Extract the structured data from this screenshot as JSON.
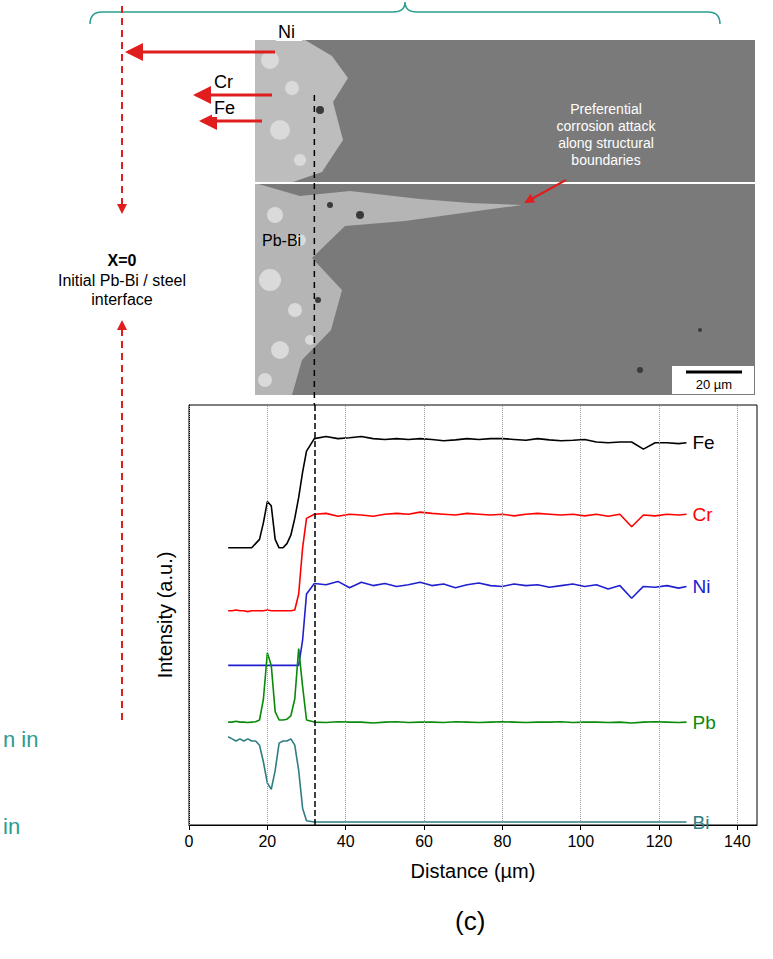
{
  "figure": {
    "image_panel": {
      "element_labels": [
        "Ni",
        "Cr",
        "Fe"
      ],
      "matrix_label": "Pb-Bi",
      "annotation": [
        "Preferential",
        "corrosion attack",
        "along structural",
        "boundaries"
      ],
      "scale_bar": "20 µm"
    },
    "interface_note": {
      "title": "X=0",
      "text": [
        "Initial Pb-Bi / steel",
        "interface"
      ]
    },
    "cut_text": [
      "n in",
      "in"
    ],
    "panel_label": "(c)"
  },
  "chart_data": {
    "type": "line",
    "x_label": "Distance (µm)",
    "y_label": "Intensity (a.u.)",
    "x": [
      10,
      11,
      12,
      13,
      14,
      15,
      16,
      17,
      18,
      19,
      20,
      21,
      22,
      23,
      24,
      25,
      26,
      27,
      28,
      29,
      30,
      32,
      35,
      38,
      41,
      44,
      47,
      50,
      53,
      56,
      59,
      62,
      65,
      68,
      71,
      74,
      77,
      80,
      83,
      86,
      89,
      92,
      95,
      98,
      101,
      104,
      107,
      110,
      113,
      116,
      119,
      122,
      125,
      127
    ],
    "series": [
      {
        "name": "Fe",
        "color": "#000000",
        "values": [
          6.6,
          6.6,
          6.6,
          6.6,
          6.6,
          6.6,
          6.6,
          6.7,
          6.8,
          7.2,
          7.7,
          7.6,
          6.8,
          6.6,
          6.6,
          6.7,
          6.9,
          7.3,
          7.8,
          8.4,
          8.9,
          9.2,
          9.25,
          9.2,
          9.22,
          9.25,
          9.2,
          9.18,
          9.2,
          9.18,
          9.2,
          9.18,
          9.15,
          9.17,
          9.2,
          9.18,
          9.2,
          9.2,
          9.18,
          9.16,
          9.2,
          9.17,
          9.15,
          9.16,
          9.18,
          9.12,
          9.1,
          9.12,
          9.12,
          8.95,
          9.1,
          9.1,
          9.08,
          9.1
        ]
      },
      {
        "name": "Cr",
        "color": "#ff0000",
        "values": [
          5.1,
          5.1,
          5.12,
          5.1,
          5.1,
          5.08,
          5.1,
          5.1,
          5.1,
          5.1,
          5.12,
          5.1,
          5.1,
          5.1,
          5.1,
          5.1,
          5.1,
          5.12,
          5.5,
          6.6,
          7.3,
          7.4,
          7.42,
          7.35,
          7.4,
          7.38,
          7.35,
          7.4,
          7.42,
          7.4,
          7.45,
          7.42,
          7.4,
          7.38,
          7.42,
          7.4,
          7.38,
          7.4,
          7.36,
          7.4,
          7.42,
          7.4,
          7.38,
          7.4,
          7.36,
          7.4,
          7.35,
          7.4,
          7.1,
          7.38,
          7.36,
          7.4,
          7.38,
          7.4
        ]
      },
      {
        "name": "Ni",
        "color": "#2020d0",
        "values": [
          3.8,
          3.8,
          3.8,
          3.8,
          3.8,
          3.8,
          3.8,
          3.8,
          3.8,
          3.8,
          3.8,
          3.8,
          3.8,
          3.8,
          3.8,
          3.8,
          3.8,
          3.8,
          3.8,
          4.4,
          5.5,
          5.75,
          5.72,
          5.8,
          5.65,
          5.78,
          5.7,
          5.75,
          5.68,
          5.72,
          5.78,
          5.7,
          5.74,
          5.65,
          5.72,
          5.76,
          5.7,
          5.68,
          5.74,
          5.7,
          5.72,
          5.66,
          5.7,
          5.74,
          5.68,
          5.72,
          5.62,
          5.7,
          5.4,
          5.68,
          5.66,
          5.7,
          5.64,
          5.68
        ]
      },
      {
        "name": "Pb",
        "color": "#0a8a0a",
        "values": [
          2.45,
          2.45,
          2.47,
          2.45,
          2.45,
          2.44,
          2.45,
          2.46,
          2.5,
          3.0,
          4.1,
          3.8,
          2.7,
          2.5,
          2.5,
          2.52,
          2.6,
          3.0,
          4.2,
          3.3,
          2.5,
          2.45,
          2.44,
          2.46,
          2.45,
          2.45,
          2.43,
          2.45,
          2.46,
          2.44,
          2.45,
          2.45,
          2.44,
          2.46,
          2.45,
          2.44,
          2.45,
          2.46,
          2.45,
          2.44,
          2.45,
          2.45,
          2.46,
          2.44,
          2.45,
          2.45,
          2.44,
          2.45,
          2.43,
          2.45,
          2.46,
          2.45,
          2.44,
          2.45
        ]
      },
      {
        "name": "Bi",
        "color": "#2e7d82",
        "values": [
          2.1,
          2.05,
          2.0,
          2.05,
          2.0,
          2.05,
          2.0,
          2.0,
          1.9,
          1.5,
          1.0,
          0.85,
          1.3,
          1.95,
          2.0,
          2.0,
          2.05,
          1.9,
          1.3,
          0.4,
          0.1,
          0.07,
          0.07,
          0.07,
          0.07,
          0.07,
          0.07,
          0.07,
          0.07,
          0.07,
          0.07,
          0.07,
          0.07,
          0.07,
          0.07,
          0.07,
          0.07,
          0.07,
          0.07,
          0.07,
          0.07,
          0.07,
          0.07,
          0.07,
          0.07,
          0.07,
          0.07,
          0.07,
          0.07,
          0.07,
          0.07,
          0.07,
          0.07,
          0.07
        ]
      }
    ],
    "vline_x": 32,
    "xlim": [
      0,
      145
    ],
    "xticks": [
      0,
      20,
      40,
      60,
      80,
      100,
      120,
      140
    ],
    "ylim": [
      0,
      10
    ],
    "tick_labels": "x",
    "grid": "x"
  }
}
